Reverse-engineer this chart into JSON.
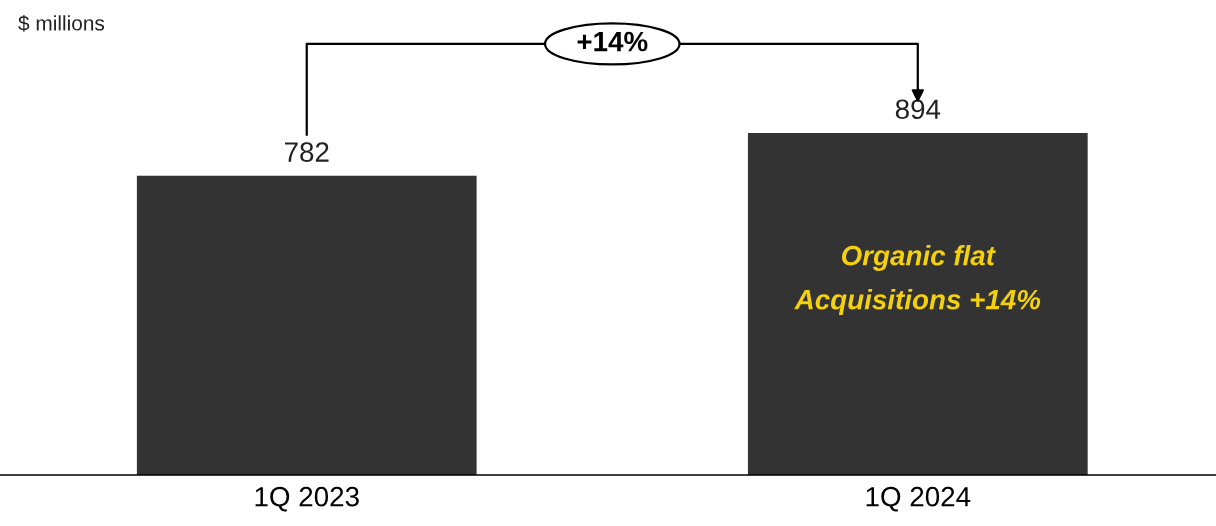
{
  "chart_data": {
    "type": "bar",
    "ylabel": "$ millions",
    "categories": [
      "1Q 2023",
      "1Q 2024"
    ],
    "values": [
      782,
      894
    ],
    "color": "#333333",
    "data_labels": true,
    "grid": false,
    "tick_labels": "x",
    "annotations": [
      "+14%",
      "Organic flat\nAcquisitions +14%"
    ]
  }
}
